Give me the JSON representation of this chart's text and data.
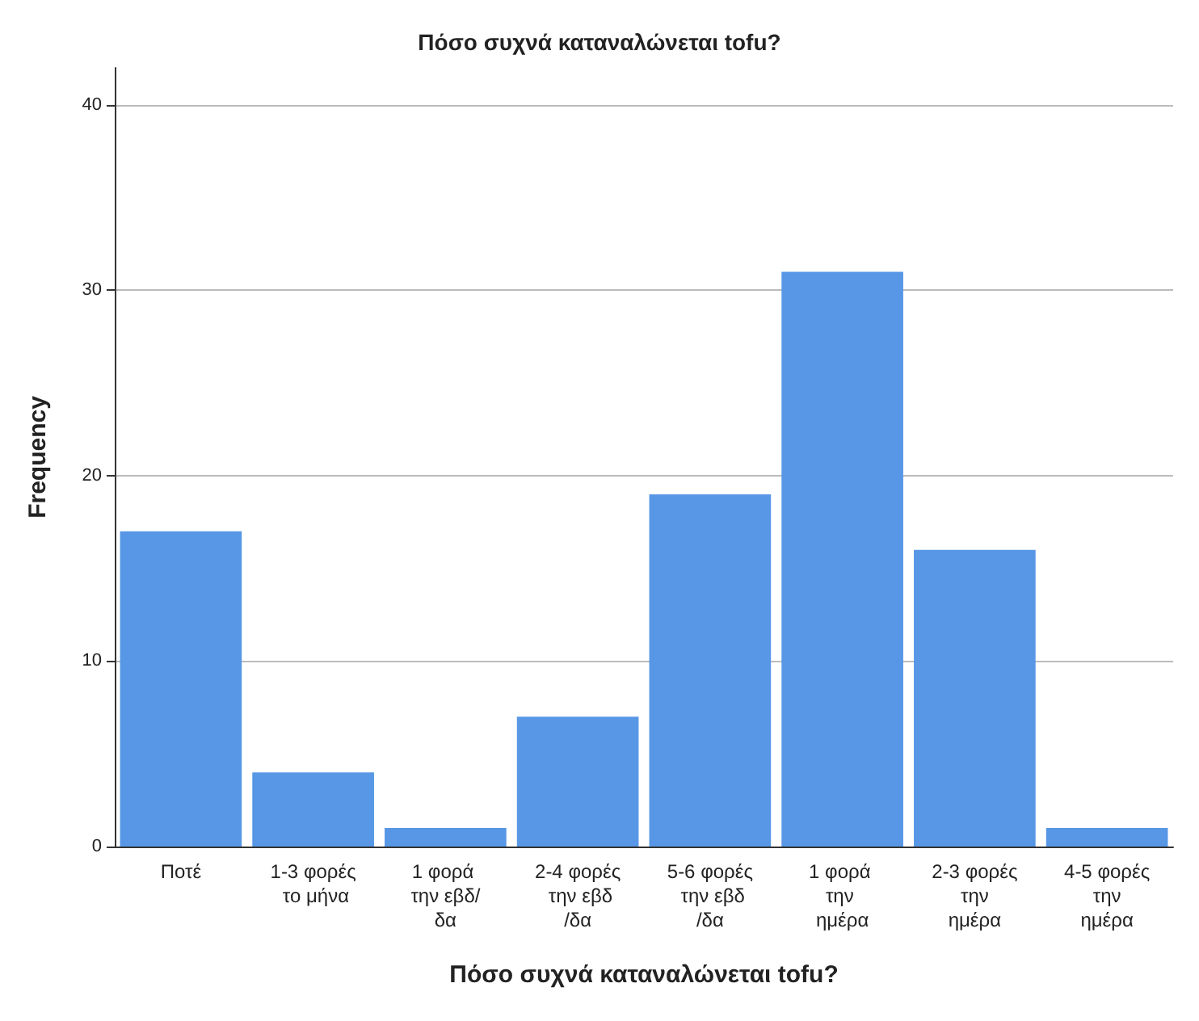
{
  "chart_data": {
    "type": "bar",
    "title": "Πόσο συχνά καταναλώνεται tofu?",
    "xlabel": "Πόσο συχνά καταναλώνεται tofu?",
    "ylabel": "Frequency",
    "categories": [
      "Ποτέ",
      "1-3 φορές το μήνα",
      "1 φορά την εβδ/δα",
      "2-4 φορές την εβδ/δα",
      "5-6 φορές την εβδ/δα",
      "1 φορά την ημέρα",
      "2-3 φορές την ημέρα",
      "4-5 φορές την ημέρα"
    ],
    "values": [
      17,
      4,
      1,
      7,
      19,
      31,
      16,
      1
    ],
    "color": "#5797e6",
    "ylim": [
      0,
      42
    ],
    "yticks": [
      0,
      10,
      20,
      30,
      40
    ],
    "grid": "y"
  }
}
